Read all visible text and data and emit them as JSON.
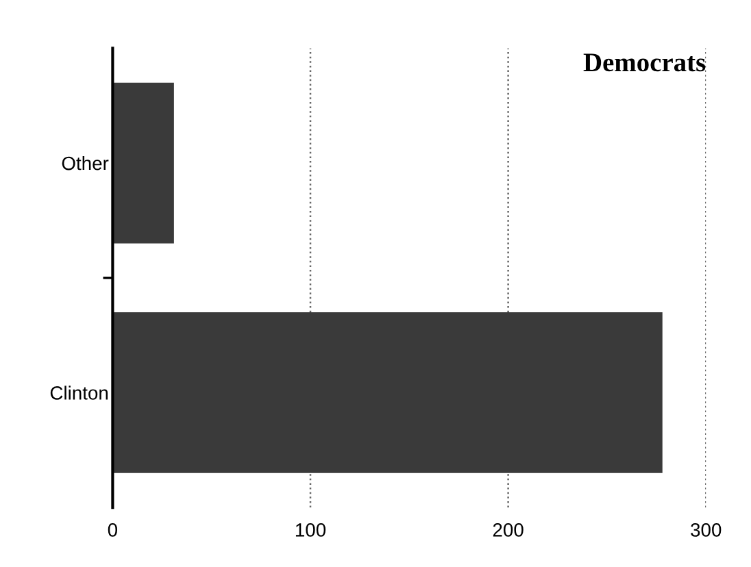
{
  "chart_data": {
    "type": "bar",
    "orientation": "horizontal",
    "title": "Democrats",
    "categories": [
      "Other",
      "Clinton"
    ],
    "values": [
      31,
      278
    ],
    "color": "#3a3a3a",
    "xlim": [
      0,
      300
    ],
    "xticks": [
      0,
      100,
      200,
      300
    ],
    "grid": "x"
  }
}
